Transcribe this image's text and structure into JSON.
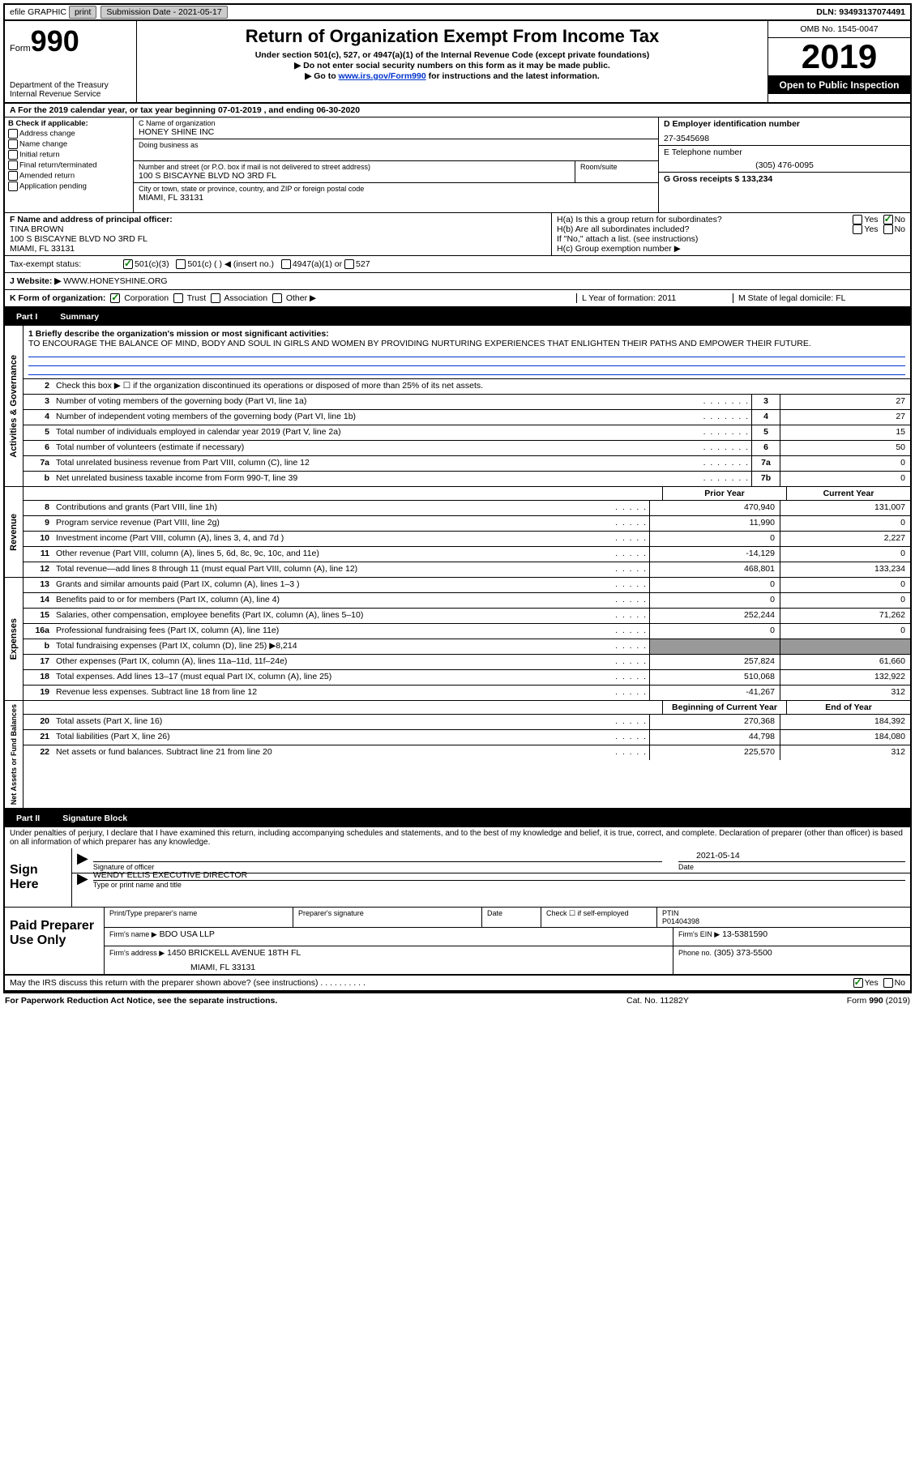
{
  "topbar": {
    "efile": "efile GRAPHIC",
    "print": "print",
    "submission_label": "Submission Date - 2021-05-17",
    "dln": "DLN: 93493137074491"
  },
  "header": {
    "form_prefix": "Form",
    "form_number": "990",
    "dept": "Department of the Treasury\nInternal Revenue Service",
    "title": "Return of Organization Exempt From Income Tax",
    "sub1": "Under section 501(c), 527, or 4947(a)(1) of the Internal Revenue Code (except private foundations)",
    "sub2": "▶ Do not enter social security numbers on this form as it may be made public.",
    "sub3_pre": "▶ Go to ",
    "sub3_link": "www.irs.gov/Form990",
    "sub3_post": " for instructions and the latest information.",
    "omb": "OMB No. 1545-0047",
    "year": "2019",
    "inspect": "Open to Public Inspection"
  },
  "line_a": "A For the 2019 calendar year, or tax year beginning 07-01-2019    , and ending 06-30-2020",
  "section_b": {
    "label": "B Check if applicable:",
    "items": [
      "Address change",
      "Name change",
      "Initial return",
      "Final return/terminated",
      "Amended return",
      "Application pending"
    ]
  },
  "section_c": {
    "name_label": "C Name of organization",
    "name_value": "HONEY SHINE INC",
    "dba_label": "Doing business as",
    "addr_label": "Number and street (or P.O. box if mail is not delivered to street address)",
    "addr_value": "100 S BISCAYNE BLVD NO 3RD FL",
    "room_label": "Room/suite",
    "city_label": "City or town, state or province, country, and ZIP or foreign postal code",
    "city_value": "MIAMI, FL  33131"
  },
  "section_d": {
    "label": "D Employer identification number",
    "value": "27-3545698"
  },
  "section_e": {
    "label": "E Telephone number",
    "value": "(305) 476-0095"
  },
  "section_g": {
    "label": "G Gross receipts $ 133,234"
  },
  "section_f": {
    "label": "F  Name and address of principal officer:",
    "name": "TINA BROWN",
    "addr": "100 S BISCAYNE BLVD NO 3RD FL",
    "city": "MIAMI, FL  33131"
  },
  "section_h": {
    "ha_label": "H(a)  Is this a group return for subordinates?",
    "hb_label": "H(b)  Are all subordinates included?",
    "h_note": "If \"No,\" attach a list. (see instructions)",
    "hc_label": "H(c)  Group exemption number ▶",
    "yes": "Yes",
    "no": "No"
  },
  "tax_status": {
    "label": "Tax-exempt status:",
    "opt1": "501(c)(3)",
    "opt2": "501(c) (  ) ◀ (insert no.)",
    "opt3": "4947(a)(1) or",
    "opt4": "527"
  },
  "website": {
    "label": "J    Website: ▶",
    "value": "WWW.HONEYSHINE.ORG"
  },
  "k_org": {
    "label": "K Form of organization:",
    "corp": "Corporation",
    "trust": "Trust",
    "assoc": "Association",
    "other": "Other ▶"
  },
  "l_box": "L Year of formation: 2011",
  "m_box": "M State of legal domicile: FL",
  "part1": {
    "label": "Part I",
    "title": "Summary"
  },
  "mission": {
    "line1_label": "1  Briefly describe the organization's mission or most significant activities:",
    "text": "TO ENCOURAGE THE BALANCE OF MIND, BODY AND SOUL IN GIRLS AND WOMEN BY PROVIDING NURTURING EXPERIENCES THAT ENLIGHTEN THEIR PATHS AND EMPOWER THEIR FUTURE."
  },
  "gov_rows": [
    {
      "n": "2",
      "d": "Check this box ▶ ☐  if the organization discontinued its operations or disposed of more than 25% of its net assets.",
      "num": "",
      "v": ""
    },
    {
      "n": "3",
      "d": "Number of voting members of the governing body (Part VI, line 1a)",
      "num": "3",
      "v": "27"
    },
    {
      "n": "4",
      "d": "Number of independent voting members of the governing body (Part VI, line 1b)",
      "num": "4",
      "v": "27"
    },
    {
      "n": "5",
      "d": "Total number of individuals employed in calendar year 2019 (Part V, line 2a)",
      "num": "5",
      "v": "15"
    },
    {
      "n": "6",
      "d": "Total number of volunteers (estimate if necessary)",
      "num": "6",
      "v": "50"
    },
    {
      "n": "7a",
      "d": "Total unrelated business revenue from Part VIII, column (C), line 12",
      "num": "7a",
      "v": "0"
    },
    {
      "n": "b",
      "d": "Net unrelated business taxable income from Form 990-T, line 39",
      "num": "7b",
      "v": "0"
    }
  ],
  "year_hdr": {
    "prior": "Prior Year",
    "current": "Current Year"
  },
  "revenue_rows": [
    {
      "n": "8",
      "d": "Contributions and grants (Part VIII, line 1h)",
      "p": "470,940",
      "c": "131,007"
    },
    {
      "n": "9",
      "d": "Program service revenue (Part VIII, line 2g)",
      "p": "11,990",
      "c": "0"
    },
    {
      "n": "10",
      "d": "Investment income (Part VIII, column (A), lines 3, 4, and 7d )",
      "p": "0",
      "c": "2,227"
    },
    {
      "n": "11",
      "d": "Other revenue (Part VIII, column (A), lines 5, 6d, 8c, 9c, 10c, and 11e)",
      "p": "-14,129",
      "c": "0"
    },
    {
      "n": "12",
      "d": "Total revenue—add lines 8 through 11 (must equal Part VIII, column (A), line 12)",
      "p": "468,801",
      "c": "133,234"
    }
  ],
  "expense_rows": [
    {
      "n": "13",
      "d": "Grants and similar amounts paid (Part IX, column (A), lines 1–3 )",
      "p": "0",
      "c": "0"
    },
    {
      "n": "14",
      "d": "Benefits paid to or for members (Part IX, column (A), line 4)",
      "p": "0",
      "c": "0"
    },
    {
      "n": "15",
      "d": "Salaries, other compensation, employee benefits (Part IX, column (A), lines 5–10)",
      "p": "252,244",
      "c": "71,262"
    },
    {
      "n": "16a",
      "d": "Professional fundraising fees (Part IX, column (A), line 11e)",
      "p": "0",
      "c": "0"
    },
    {
      "n": "b",
      "d": "Total fundraising expenses (Part IX, column (D), line 25) ▶8,214",
      "p": "shaded",
      "c": "shaded"
    },
    {
      "n": "17",
      "d": "Other expenses (Part IX, column (A), lines 11a–11d, 11f–24e)",
      "p": "257,824",
      "c": "61,660"
    },
    {
      "n": "18",
      "d": "Total expenses. Add lines 13–17 (must equal Part IX, column (A), line 25)",
      "p": "510,068",
      "c": "132,922"
    },
    {
      "n": "19",
      "d": "Revenue less expenses. Subtract line 18 from line 12",
      "p": "-41,267",
      "c": "312"
    }
  ],
  "net_hdr": {
    "begin": "Beginning of Current Year",
    "end": "End of Year"
  },
  "net_rows": [
    {
      "n": "20",
      "d": "Total assets (Part X, line 16)",
      "p": "270,368",
      "c": "184,392"
    },
    {
      "n": "21",
      "d": "Total liabilities (Part X, line 26)",
      "p": "44,798",
      "c": "184,080"
    },
    {
      "n": "22",
      "d": "Net assets or fund balances. Subtract line 21 from line 20",
      "p": "225,570",
      "c": "312"
    }
  ],
  "part2": {
    "label": "Part II",
    "title": "Signature Block"
  },
  "penalty": "Under penalties of perjury, I declare that I have examined this return, including accompanying schedules and statements, and to the best of my knowledge and belief, it is true, correct, and complete. Declaration of preparer (other than officer) is based on all information of which preparer has any knowledge.",
  "sign": {
    "label": "Sign Here",
    "sig_of_officer": "Signature of officer",
    "date_label": "Date",
    "date_value": "2021-05-14",
    "name": "WENDY ELLIS  EXECUTIVE DIRECTOR",
    "name_label": "Type or print name and title"
  },
  "paid": {
    "label": "Paid Preparer Use Only",
    "h1": "Print/Type preparer's name",
    "h2": "Preparer's signature",
    "h3": "Date",
    "h4_pre": "Check ☐ if self-employed",
    "h5_label": "PTIN",
    "h5_value": "P01404398",
    "firm_label": "Firm's name     ▶",
    "firm_value": "BDO USA LLP",
    "ein_label": "Firm's EIN ▶",
    "ein_value": "13-5381590",
    "addr_label": "Firm's address ▶",
    "addr_value": "1450 BRICKELL AVENUE 18TH FL",
    "addr_city": "MIAMI, FL  33131",
    "phone_label": "Phone no.",
    "phone_value": "(305) 373-5500"
  },
  "discuss": {
    "text": "May the IRS discuss this return with the preparer shown above? (see instructions)",
    "yes": "Yes",
    "no": "No"
  },
  "footer": {
    "left": "For Paperwork Reduction Act Notice, see the separate instructions.",
    "center": "Cat. No. 11282Y",
    "right": "Form 990 (2019)"
  },
  "section_labels": {
    "gov": "Activities & Governance",
    "rev": "Revenue",
    "exp": "Expenses",
    "net": "Net Assets or Fund Balances"
  }
}
